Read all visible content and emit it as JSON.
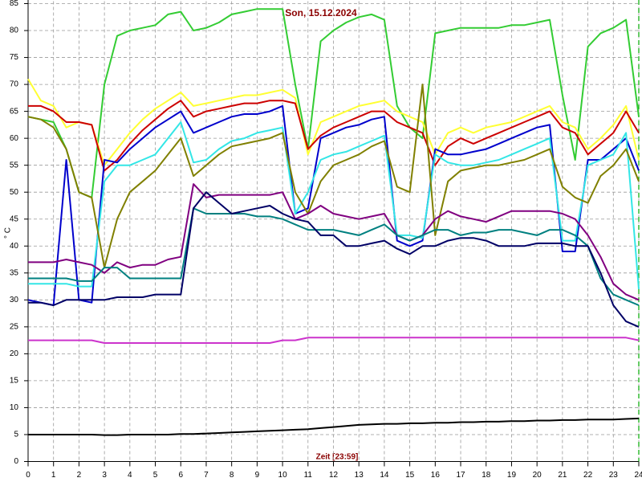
{
  "chart_data": {
    "type": "line",
    "title": "Son, 15.12.2024",
    "x_label": "Zeit [23:59]",
    "y_label": "° C",
    "x": [
      0,
      0.5,
      1,
      1.5,
      2,
      2.5,
      3,
      3.5,
      4,
      4.5,
      5,
      5.5,
      6,
      6.5,
      7,
      7.5,
      8,
      8.5,
      9,
      9.5,
      10,
      10.5,
      11,
      11.5,
      12,
      12.5,
      13,
      13.5,
      14,
      14.5,
      15,
      15.5,
      16,
      16.5,
      17,
      17.5,
      18,
      18.5,
      19,
      19.5,
      20,
      20.5,
      21,
      21.5,
      22,
      22.5,
      23,
      23.5,
      24
    ],
    "xlim": [
      0,
      24
    ],
    "xticks": [
      0,
      1,
      2,
      3,
      4,
      5,
      6,
      7,
      8,
      9,
      10,
      11,
      12,
      13,
      14,
      15,
      16,
      17,
      18,
      19,
      20,
      21,
      22,
      23,
      24
    ],
    "ylim": [
      0,
      85
    ],
    "yticks": [
      0,
      5,
      10,
      15,
      20,
      25,
      30,
      35,
      40,
      45,
      50,
      55,
      60,
      65,
      70,
      75,
      80,
      85
    ],
    "grid": true,
    "series": [
      {
        "color": "#33cc33",
        "values": [
          64,
          63.5,
          63,
          58,
          50,
          49,
          70,
          79,
          80,
          80.5,
          81,
          83,
          83.5,
          80,
          80.5,
          81.5,
          83,
          83.5,
          84,
          84,
          84,
          70,
          58,
          78,
          80,
          81.5,
          82.5,
          83,
          82,
          66,
          62,
          60,
          79.5,
          80,
          80.5,
          80.5,
          80.5,
          80.5,
          81,
          81,
          81.5,
          82,
          68,
          56,
          77,
          79.5,
          80.5,
          82,
          64
        ]
      },
      {
        "color": "#ffff33",
        "values": [
          71,
          67,
          66,
          62,
          63,
          62.5,
          55,
          58,
          61,
          63.5,
          65.5,
          67,
          68.5,
          66,
          66.5,
          67,
          67.5,
          68,
          68,
          68.5,
          69,
          67.5,
          57,
          63,
          64,
          65,
          66,
          66.5,
          67,
          65,
          64,
          63,
          57,
          61,
          62,
          61,
          62,
          62.5,
          63,
          64,
          65,
          66,
          63,
          62,
          58,
          60,
          62.5,
          66,
          56
        ]
      },
      {
        "color": "#cc0000",
        "values": [
          66,
          66,
          65,
          63,
          63,
          62.5,
          54,
          56,
          59,
          61.5,
          63.5,
          65.5,
          67,
          64,
          65,
          65.5,
          66,
          66.5,
          66.5,
          67,
          67,
          66.5,
          58,
          60.5,
          62,
          63,
          64,
          65,
          65,
          63,
          62,
          61,
          55,
          58.5,
          60,
          59,
          60,
          61,
          62,
          63,
          64,
          65,
          62,
          61,
          57,
          59,
          61,
          65,
          61
        ]
      },
      {
        "color": "#0000cc",
        "values": [
          30,
          29.5,
          29,
          56,
          30,
          29.5,
          56,
          55.5,
          58,
          60,
          62,
          63.5,
          65,
          61,
          62,
          63,
          64,
          64.5,
          64.5,
          65,
          66,
          46,
          47,
          60,
          61,
          62,
          62.5,
          63.5,
          64,
          41,
          40,
          41,
          58,
          57,
          57,
          57.5,
          58,
          59,
          60,
          61,
          62,
          62.5,
          39,
          39,
          56,
          56,
          58,
          60,
          54
        ]
      },
      {
        "color": "#33e6e6",
        "values": [
          33,
          33,
          33,
          33,
          32.5,
          32.5,
          52,
          55,
          55,
          56,
          57,
          60,
          63,
          55.5,
          56,
          58,
          59.5,
          60,
          61,
          61.5,
          62,
          46,
          50,
          56,
          57,
          57.5,
          58.5,
          59.5,
          60.5,
          42,
          42,
          41.5,
          57,
          55.5,
          55,
          55,
          55.5,
          56,
          57,
          58,
          59,
          60,
          41,
          41,
          55,
          56,
          57,
          61,
          32
        ]
      },
      {
        "color": "#808000",
        "values": [
          64,
          63.5,
          62,
          58,
          50,
          49,
          36,
          45,
          50,
          52,
          54,
          57,
          60,
          53,
          55,
          57,
          58.5,
          59,
          59.5,
          60,
          61,
          50,
          46,
          52,
          55,
          56,
          57,
          58.5,
          59.5,
          51,
          50,
          70,
          42,
          52,
          54,
          54.5,
          55,
          55,
          55.5,
          56,
          57,
          58,
          51,
          49,
          48,
          53,
          55,
          58,
          52
        ]
      },
      {
        "color": "#800080",
        "values": [
          37,
          37,
          37,
          37.5,
          37,
          36.5,
          35,
          37,
          36,
          36.5,
          36.5,
          37.5,
          38,
          51.5,
          49,
          49.5,
          49.5,
          49.5,
          49.5,
          49.5,
          50,
          45,
          46,
          47.5,
          46,
          45.5,
          45,
          45.5,
          46,
          42,
          41,
          42,
          45,
          46.5,
          45.5,
          45,
          44.5,
          45.5,
          46.5,
          46.5,
          46.5,
          46.5,
          46,
          45,
          42,
          38,
          33,
          31,
          30
        ]
      },
      {
        "color": "#008080",
        "values": [
          34,
          34,
          34,
          34,
          33.5,
          33.5,
          36,
          36,
          34,
          34,
          34,
          34,
          34,
          47,
          46,
          46,
          46,
          46,
          45.5,
          45.5,
          45,
          44,
          43,
          43,
          43,
          42.5,
          42,
          43,
          44,
          42,
          41,
          42,
          43,
          43,
          42,
          42.5,
          42.5,
          43,
          43,
          42.5,
          42,
          43,
          43,
          42,
          40,
          34,
          31,
          30,
          29
        ]
      },
      {
        "color": "#000066",
        "values": [
          29.5,
          29.5,
          29,
          30,
          30,
          30,
          30,
          30.5,
          30.5,
          30.5,
          31,
          31,
          31,
          47,
          50,
          48,
          46,
          46.5,
          47,
          47.5,
          46,
          45,
          44.5,
          42,
          42,
          40,
          40,
          40.5,
          41,
          39.5,
          38.5,
          40,
          40,
          41,
          41.5,
          41.5,
          41,
          40,
          40,
          40,
          40.5,
          40.5,
          40.5,
          40,
          40,
          35,
          29,
          26,
          25
        ]
      },
      {
        "color": "#cc33cc",
        "values": [
          22.5,
          22.5,
          22.5,
          22.5,
          22.5,
          22.5,
          22,
          22,
          22,
          22,
          22,
          22,
          22,
          22,
          22,
          22,
          22,
          22,
          22,
          22,
          22.5,
          22.5,
          23,
          23,
          23,
          23,
          23,
          23,
          23,
          23,
          23,
          23,
          23,
          23,
          23,
          23,
          23,
          23,
          23,
          23,
          23,
          23,
          23,
          23,
          23,
          23,
          23,
          23,
          22.5
        ]
      },
      {
        "color": "#000000",
        "values": [
          5,
          5,
          5,
          5,
          5,
          5,
          4.9,
          4.9,
          5,
          5,
          5,
          5,
          5.1,
          5.1,
          5.2,
          5.3,
          5.4,
          5.5,
          5.6,
          5.7,
          5.8,
          5.9,
          6,
          6.2,
          6.4,
          6.6,
          6.8,
          6.9,
          7,
          7,
          7.1,
          7.1,
          7.2,
          7.2,
          7.3,
          7.3,
          7.4,
          7.4,
          7.5,
          7.5,
          7.6,
          7.6,
          7.7,
          7.7,
          7.8,
          7.8,
          7.8,
          7.9,
          8
        ]
      }
    ]
  }
}
